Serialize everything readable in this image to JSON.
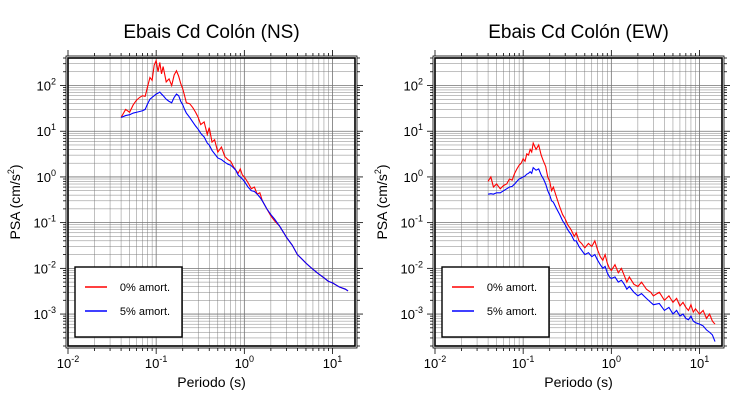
{
  "chart_data": [
    {
      "type": "line",
      "title": "Ebais Cd Colón (NS)",
      "xlabel": "Periodo (s)",
      "ylabel_main": "PSA (cm/s",
      "ylabel_sup": "2",
      "ylabel_close": ")",
      "xscale": "log",
      "yscale": "log",
      "xlim": [
        0.01,
        18
      ],
      "ylim": [
        0.0002,
        400
      ],
      "grid": true,
      "legend_position": "bottom-left",
      "x_ticks": [
        {
          "base": "10",
          "exp": "-2"
        },
        {
          "base": "10",
          "exp": "-1"
        },
        {
          "base": "10",
          "exp": "0"
        },
        {
          "base": "10",
          "exp": "1"
        }
      ],
      "y_ticks": [
        {
          "base": "10",
          "exp": "-3"
        },
        {
          "base": "10",
          "exp": "-2"
        },
        {
          "base": "10",
          "exp": "-1"
        },
        {
          "base": "10",
          "exp": "0"
        },
        {
          "base": "10",
          "exp": "1"
        },
        {
          "base": "10",
          "exp": "2"
        }
      ],
      "series": [
        {
          "name": "0% amort.",
          "color": "#ff0000",
          "x": [
            0.04,
            0.045,
            0.05,
            0.055,
            0.06,
            0.065,
            0.07,
            0.075,
            0.08,
            0.085,
            0.09,
            0.095,
            0.1,
            0.105,
            0.11,
            0.115,
            0.12,
            0.13,
            0.14,
            0.15,
            0.16,
            0.17,
            0.18,
            0.19,
            0.2,
            0.21,
            0.22,
            0.24,
            0.26,
            0.28,
            0.3,
            0.32,
            0.35,
            0.38,
            0.4,
            0.43,
            0.46,
            0.5,
            0.55,
            0.6,
            0.65,
            0.7,
            0.75,
            0.8,
            0.85,
            0.9,
            0.95,
            1.0,
            1.1,
            1.2,
            1.3,
            1.4,
            1.5,
            1.6,
            1.8,
            2.0,
            2.2,
            2.5,
            2.8,
            3.0,
            3.5,
            4.0,
            4.5,
            5.0,
            6.0,
            7.0,
            8.0,
            9.0,
            10.0,
            12.0,
            14.0,
            15.0
          ],
          "y": [
            20,
            30,
            26,
            38,
            48,
            55,
            60,
            58,
            95,
            150,
            130,
            280,
            350,
            200,
            320,
            180,
            260,
            120,
            140,
            100,
            170,
            210,
            160,
            110,
            85,
            60,
            42,
            40,
            33,
            26,
            20,
            14,
            16,
            8.5,
            12,
            5.8,
            6.5,
            3.5,
            4.5,
            2.8,
            2.4,
            2.2,
            1.7,
            1.4,
            1.2,
            1.5,
            1.1,
            1.0,
            0.75,
            0.55,
            0.6,
            0.42,
            0.45,
            0.3,
            0.2,
            0.14,
            0.11,
            0.085,
            0.06,
            0.048,
            0.032,
            0.02,
            0.016,
            0.013,
            0.0095,
            0.0075,
            0.0062,
            0.0052,
            0.0048,
            0.0039,
            0.0035,
            0.0032
          ]
        },
        {
          "name": "5% amort.",
          "color": "#0000ff",
          "x": [
            0.04,
            0.045,
            0.05,
            0.055,
            0.06,
            0.065,
            0.07,
            0.075,
            0.08,
            0.085,
            0.09,
            0.095,
            0.1,
            0.105,
            0.11,
            0.115,
            0.12,
            0.13,
            0.14,
            0.15,
            0.16,
            0.17,
            0.18,
            0.19,
            0.2,
            0.21,
            0.22,
            0.24,
            0.26,
            0.28,
            0.3,
            0.32,
            0.35,
            0.38,
            0.4,
            0.43,
            0.46,
            0.5,
            0.55,
            0.6,
            0.65,
            0.7,
            0.75,
            0.8,
            0.85,
            0.9,
            0.95,
            1.0,
            1.1,
            1.2,
            1.3,
            1.4,
            1.5,
            1.6,
            1.8,
            2.0,
            2.2,
            2.5,
            2.8,
            3.0,
            3.5,
            4.0,
            4.5,
            5.0,
            6.0,
            7.0,
            8.0,
            9.0,
            10.0,
            12.0,
            14.0,
            15.0
          ],
          "y": [
            20,
            22,
            23,
            25,
            26,
            27,
            28,
            30,
            40,
            50,
            55,
            60,
            65,
            68,
            72,
            65,
            60,
            50,
            45,
            42,
            55,
            65,
            60,
            45,
            38,
            30,
            25,
            20,
            16,
            13,
            11,
            9,
            7.5,
            5.5,
            5.0,
            3.8,
            3.2,
            2.6,
            2.4,
            2.1,
            1.9,
            1.8,
            1.6,
            1.4,
            1.1,
            1.0,
            0.9,
            0.8,
            0.6,
            0.5,
            0.48,
            0.42,
            0.36,
            0.3,
            0.2,
            0.15,
            0.12,
            0.085,
            0.06,
            0.048,
            0.032,
            0.02,
            0.016,
            0.013,
            0.0095,
            0.0075,
            0.0062,
            0.0052,
            0.0048,
            0.0039,
            0.0035,
            0.0032
          ]
        }
      ]
    },
    {
      "type": "line",
      "title": "Ebais Cd Colón (EW)",
      "xlabel": "Periodo (s)",
      "ylabel_main": "PSA (cm/s",
      "ylabel_sup": "2",
      "ylabel_close": ")",
      "xscale": "log",
      "yscale": "log",
      "xlim": [
        0.01,
        18
      ],
      "ylim": [
        0.0002,
        400
      ],
      "grid": true,
      "legend_position": "bottom-left",
      "x_ticks": [
        {
          "base": "10",
          "exp": "-2"
        },
        {
          "base": "10",
          "exp": "-1"
        },
        {
          "base": "10",
          "exp": "0"
        },
        {
          "base": "10",
          "exp": "1"
        }
      ],
      "y_ticks": [
        {
          "base": "10",
          "exp": "-3"
        },
        {
          "base": "10",
          "exp": "-2"
        },
        {
          "base": "10",
          "exp": "-1"
        },
        {
          "base": "10",
          "exp": "0"
        },
        {
          "base": "10",
          "exp": "1"
        },
        {
          "base": "10",
          "exp": "2"
        }
      ],
      "series": [
        {
          "name": "0% amort.",
          "color": "#ff0000",
          "x": [
            0.04,
            0.043,
            0.046,
            0.05,
            0.055,
            0.06,
            0.065,
            0.07,
            0.075,
            0.08,
            0.085,
            0.09,
            0.095,
            0.1,
            0.105,
            0.11,
            0.115,
            0.12,
            0.125,
            0.13,
            0.14,
            0.15,
            0.16,
            0.17,
            0.18,
            0.19,
            0.2,
            0.21,
            0.22,
            0.24,
            0.26,
            0.28,
            0.3,
            0.32,
            0.35,
            0.38,
            0.4,
            0.43,
            0.46,
            0.5,
            0.55,
            0.6,
            0.65,
            0.7,
            0.75,
            0.8,
            0.85,
            0.9,
            0.95,
            1.0,
            1.1,
            1.2,
            1.3,
            1.4,
            1.5,
            1.6,
            1.8,
            2.0,
            2.2,
            2.5,
            2.8,
            3.0,
            3.5,
            4.0,
            4.5,
            5.0,
            5.5,
            6.0,
            6.5,
            7.0,
            7.5,
            8.0,
            8.5,
            9.0,
            10.0,
            11.0,
            12.0,
            13.0,
            14.0,
            15.0
          ],
          "y": [
            0.8,
            1.0,
            0.6,
            0.7,
            0.55,
            0.65,
            0.7,
            0.9,
            0.85,
            1.2,
            1.5,
            1.8,
            2.0,
            2.5,
            2.2,
            3.2,
            3.0,
            4.0,
            3.5,
            5.5,
            4.0,
            5.0,
            3.0,
            2.2,
            1.7,
            1.0,
            0.8,
            0.5,
            0.6,
            0.35,
            0.22,
            0.15,
            0.12,
            0.09,
            0.07,
            0.05,
            0.06,
            0.04,
            0.035,
            0.028,
            0.035,
            0.03,
            0.04,
            0.025,
            0.018,
            0.015,
            0.02,
            0.013,
            0.01,
            0.009,
            0.012,
            0.008,
            0.01,
            0.007,
            0.005,
            0.0065,
            0.0045,
            0.004,
            0.005,
            0.0035,
            0.003,
            0.0025,
            0.003,
            0.002,
            0.0025,
            0.0018,
            0.0022,
            0.0015,
            0.0018,
            0.0014,
            0.0012,
            0.0016,
            0.0011,
            0.0013,
            0.001,
            0.0012,
            0.0008,
            0.001,
            0.0007,
            0.0006
          ]
        },
        {
          "name": "5% amort.",
          "color": "#0000ff",
          "x": [
            0.04,
            0.043,
            0.046,
            0.05,
            0.055,
            0.06,
            0.065,
            0.07,
            0.075,
            0.08,
            0.085,
            0.09,
            0.095,
            0.1,
            0.105,
            0.11,
            0.115,
            0.12,
            0.125,
            0.13,
            0.14,
            0.15,
            0.16,
            0.17,
            0.18,
            0.19,
            0.2,
            0.21,
            0.22,
            0.24,
            0.26,
            0.28,
            0.3,
            0.32,
            0.35,
            0.38,
            0.4,
            0.43,
            0.46,
            0.5,
            0.55,
            0.6,
            0.65,
            0.7,
            0.75,
            0.8,
            0.85,
            0.9,
            0.95,
            1.0,
            1.1,
            1.2,
            1.3,
            1.4,
            1.5,
            1.6,
            1.8,
            2.0,
            2.2,
            2.5,
            2.8,
            3.0,
            3.5,
            4.0,
            4.5,
            5.0,
            5.5,
            6.0,
            6.5,
            7.0,
            7.5,
            8.0,
            8.5,
            9.0,
            10.0,
            11.0,
            12.0,
            13.0,
            14.0,
            15.0
          ],
          "y": [
            0.42,
            0.43,
            0.42,
            0.45,
            0.45,
            0.5,
            0.55,
            0.6,
            0.62,
            0.7,
            0.8,
            0.9,
            0.95,
            1.0,
            1.05,
            1.15,
            1.2,
            1.3,
            1.2,
            1.6,
            1.4,
            1.5,
            1.1,
            0.9,
            0.7,
            0.5,
            0.4,
            0.3,
            0.28,
            0.2,
            0.15,
            0.11,
            0.09,
            0.07,
            0.055,
            0.04,
            0.04,
            0.03,
            0.025,
            0.02,
            0.022,
            0.018,
            0.02,
            0.015,
            0.012,
            0.01,
            0.011,
            0.008,
            0.0065,
            0.006,
            0.0065,
            0.005,
            0.0055,
            0.0045,
            0.0035,
            0.004,
            0.003,
            0.0025,
            0.0028,
            0.0022,
            0.0018,
            0.0016,
            0.0017,
            0.0012,
            0.0014,
            0.001,
            0.0012,
            0.0009,
            0.001,
            0.0008,
            0.00075,
            0.0009,
            0.0007,
            0.00065,
            0.0006,
            0.00055,
            0.00045,
            0.0004,
            0.00035,
            0.00025
          ]
        }
      ]
    }
  ]
}
